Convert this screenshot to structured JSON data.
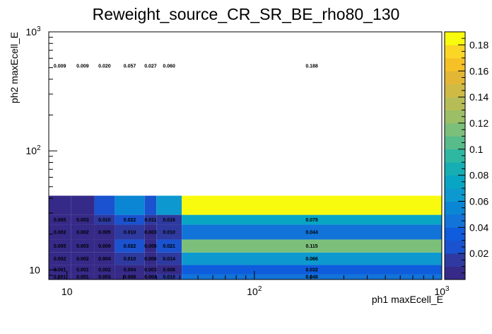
{
  "chart_data": {
    "type": "heatmap",
    "title": "Reweight_source_CR_SR_BE_rho80_130",
    "xlabel": "ph1 maxEcell_E",
    "ylabel": "ph2 maxEcell_E",
    "x_scale": "log",
    "y_scale": "log",
    "xlim": [
      8,
      1000
    ],
    "ylim": [
      8.3,
      1000
    ],
    "x_ticks": [
      {
        "value": 10,
        "base": "10",
        "exp": ""
      },
      {
        "value": 100,
        "base": "10",
        "exp": "2"
      },
      {
        "value": 1000,
        "base": "10",
        "exp": "3"
      }
    ],
    "y_ticks": [
      {
        "value": 10,
        "base": "10",
        "exp": ""
      },
      {
        "value": 100,
        "base": "10",
        "exp": "2"
      },
      {
        "value": 1000,
        "base": "10",
        "exp": "3"
      }
    ],
    "x_bins": [
      8,
      10.5,
      14,
      18,
      26,
      30,
      41,
      1000
    ],
    "y_bins": [
      8.3,
      9.2,
      11.0,
      14.0,
      18.0,
      24.0,
      29.0,
      42.0,
      1000
    ],
    "cells": [
      [
        "0.001",
        "0.001",
        "0.003",
        "0.008",
        "0.004",
        "0.010",
        "0.048"
      ],
      [
        "0.001",
        "0.001",
        "0.002",
        "0.004",
        "0.003",
        "0.006",
        "0.032"
      ],
      [
        "0.002",
        "0.002",
        "0.004",
        "0.010",
        "0.006",
        "0.014",
        "0.066"
      ],
      [
        "0.005",
        "0.003",
        "0.009",
        "0.022",
        "0.008",
        "0.021",
        "0.115"
      ],
      [
        "0.002",
        "0.002",
        "0.005",
        "0.010",
        "0.003",
        "0.010",
        "0.044"
      ],
      [
        "0.005",
        "0.003",
        "0.010",
        "0.022",
        "0.011",
        "0.016",
        "0.075"
      ],
      [
        "0.009",
        "0.009",
        "0.020",
        "0.057",
        "0.027",
        "0.060",
        "0.188"
      ]
    ],
    "bottom_row_hidden_cells": [
      [
        "0.001",
        "0.001",
        "0.001",
        "0.002",
        "0.001",
        "0.003",
        "0.010"
      ]
    ],
    "z_range": [
      0,
      0.19
    ],
    "colorbar_ticks": [
      "0.02",
      "0.04",
      "0.06",
      "0.08",
      "0.1",
      "0.12",
      "0.14",
      "0.16",
      "0.18"
    ],
    "palette": [
      "#352a87",
      "#2e3a9f",
      "#1a52cf",
      "#0f5cdd",
      "#1273d8",
      "#0a86d4",
      "#0d99cf",
      "#09a5c4",
      "#16adb3",
      "#2eb7a1",
      "#57bb8a",
      "#7cbf7a",
      "#9bbe67",
      "#b7bd56",
      "#cfba45",
      "#e3b735",
      "#f5c126",
      "#fbd625",
      "#f9fb0e"
    ],
    "grid": false
  }
}
